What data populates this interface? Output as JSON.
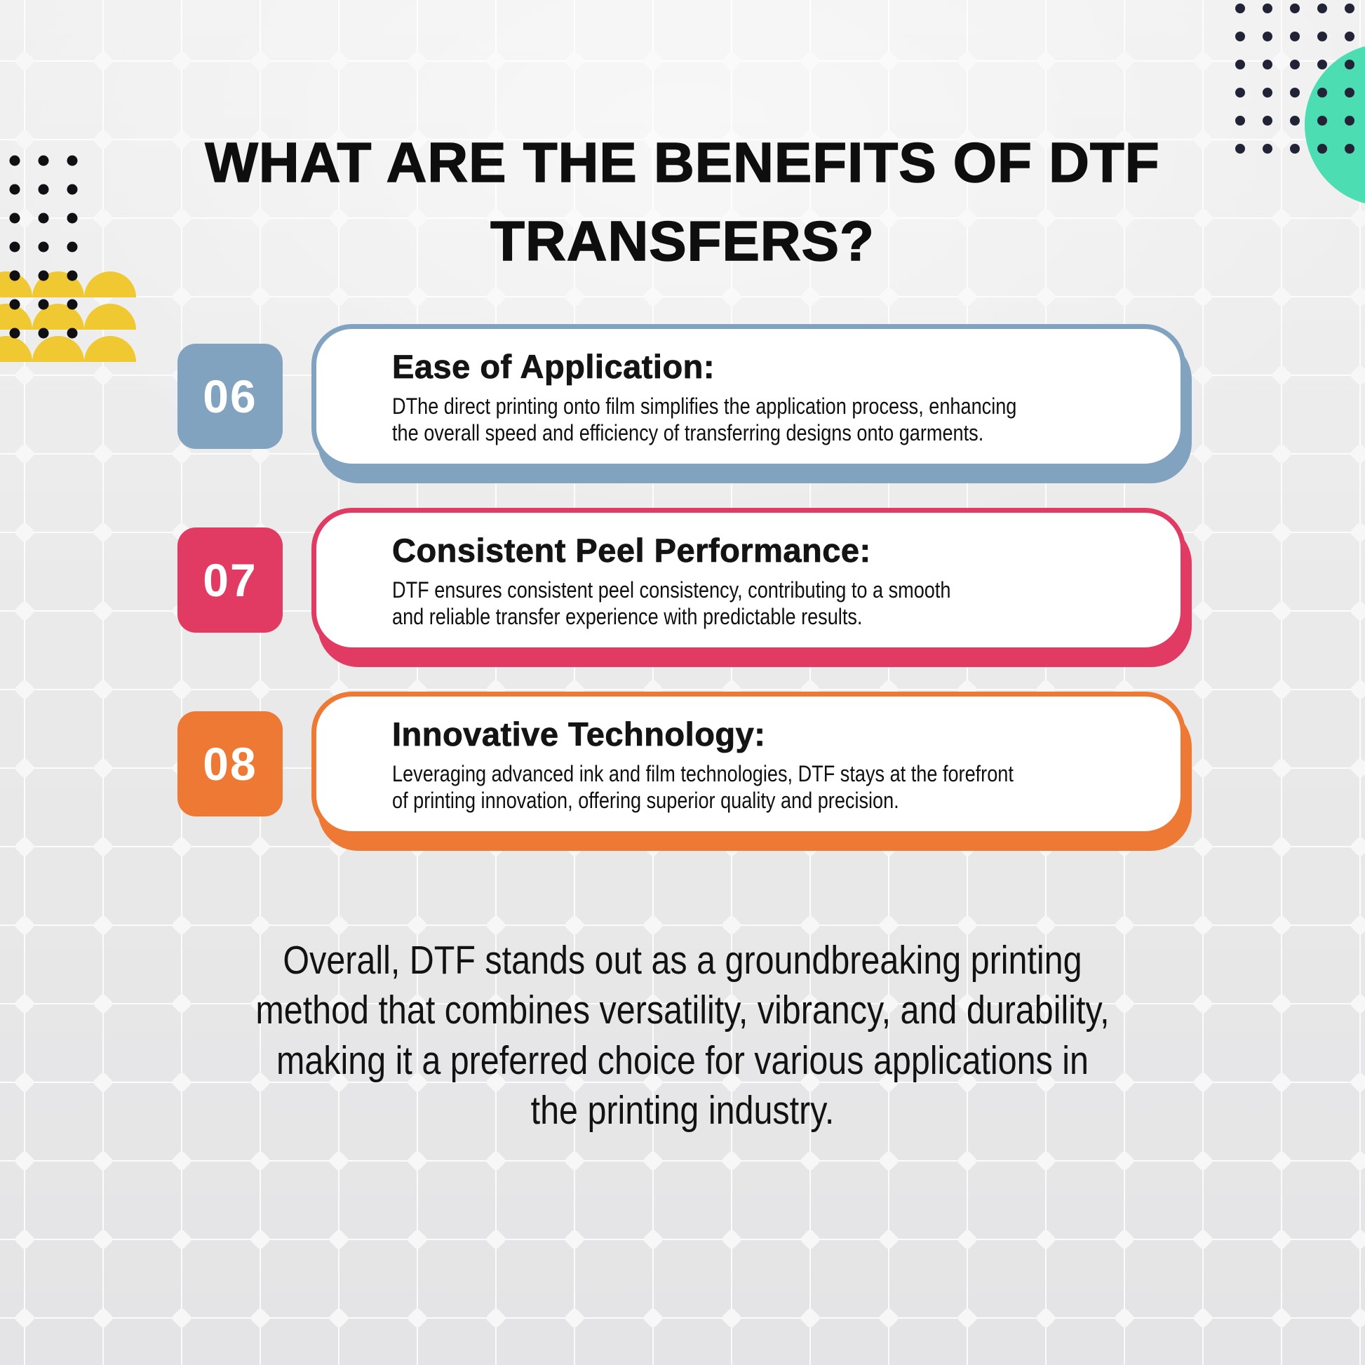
{
  "page_title": "WHAT ARE THE BENEFITS OF DTF TRANSFERS?",
  "title_lines": [
    "WHAT ARE THE BENEFITS OF DTF",
    "TRANSFERS?"
  ],
  "benefits": [
    {
      "number": "06",
      "heading": "Ease of Application:",
      "body_lines": [
        "DThe direct printing onto film simplifies the application process, enhancing",
        "the overall speed and efficiency of transferring designs onto garments."
      ],
      "accent_color": "#82a3c0"
    },
    {
      "number": "07",
      "heading": "Consistent Peel Performance:",
      "body_lines": [
        "DTF ensures consistent peel consistency, contributing to a smooth",
        "and reliable transfer experience with predictable results."
      ],
      "accent_color": "#e13b63"
    },
    {
      "number": "08",
      "heading": "Innovative Technology:",
      "body_lines": [
        "Leveraging advanced ink and film technologies, DTF stays at the forefront",
        "of printing innovation, offering superior quality and precision."
      ],
      "accent_color": "#ee7934"
    }
  ],
  "conclusion_lines": [
    "Overall, DTF stands out as a groundbreaking printing",
    "method that combines versatility, vibrancy, and durability,",
    "making it a preferred choice for various applications in",
    "the printing industry."
  ],
  "decorations": {
    "teal_circle_color": "#4cddb2",
    "yellow_scallop_color": "#f0c832",
    "navy_dot_color": "#232338",
    "black_dot_color": "#101014"
  }
}
